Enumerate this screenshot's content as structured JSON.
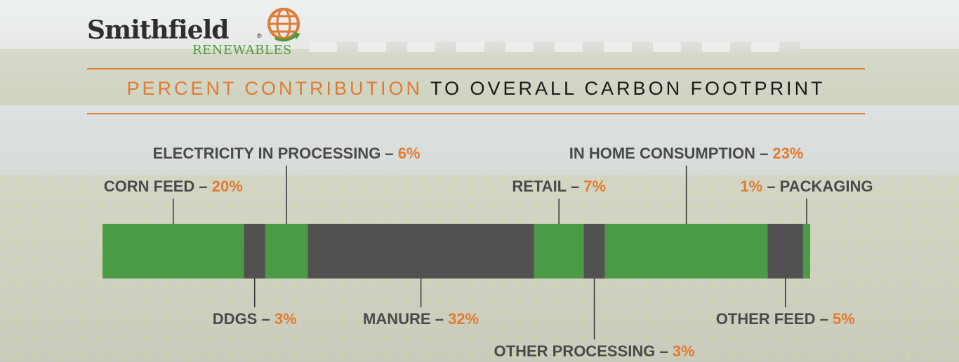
{
  "brand": {
    "name": "Smithfield",
    "registered_mark": "®",
    "subtitle": "RENEWABLES"
  },
  "title": {
    "accent": "PERCENT CONTRIBUTION",
    "rest": "TO OVERALL CARBON FOOTPRINT"
  },
  "colors": {
    "accent": "#e07b33",
    "green": "#4a9b43",
    "gray": "#515151",
    "label": "#4a4a4a"
  },
  "chart_data": {
    "type": "bar",
    "orientation": "horizontal-stacked",
    "title": "PERCENT CONTRIBUTION TO OVERALL CARBON FOOTPRINT",
    "unit": "%",
    "segments": [
      {
        "name": "CORN FEED",
        "value": 20,
        "label": "20%",
        "color": "green",
        "label_side": "top",
        "label_row": 2,
        "order": "name-first"
      },
      {
        "name": "DDGS",
        "value": 3,
        "label": "3%",
        "color": "gray",
        "label_side": "bottom",
        "label_row": 1,
        "order": "name-first"
      },
      {
        "name": "ELECTRICITY IN PROCESSING",
        "value": 6,
        "label": "6%",
        "color": "green",
        "label_side": "top",
        "label_row": 1,
        "order": "name-first"
      },
      {
        "name": "MANURE",
        "value": 32,
        "label": "32%",
        "color": "gray",
        "label_side": "bottom",
        "label_row": 1,
        "order": "name-first"
      },
      {
        "name": "RETAIL",
        "value": 7,
        "label": "7%",
        "color": "green",
        "label_side": "top",
        "label_row": 2,
        "order": "name-first"
      },
      {
        "name": "OTHER PROCESSING",
        "value": 3,
        "label": "3%",
        "color": "gray",
        "label_side": "bottom",
        "label_row": 2,
        "order": "name-first"
      },
      {
        "name": "IN HOME CONSUMPTION",
        "value": 23,
        "label": "23%",
        "color": "green",
        "label_side": "top",
        "label_row": 1,
        "order": "name-first"
      },
      {
        "name": "OTHER FEED",
        "value": 5,
        "label": "5%",
        "color": "gray",
        "label_side": "bottom",
        "label_row": 1,
        "order": "name-first"
      },
      {
        "name": "PACKAGING",
        "value": 1,
        "label": "1%",
        "color": "green",
        "label_side": "top",
        "label_row": 2,
        "order": "value-first"
      }
    ]
  }
}
